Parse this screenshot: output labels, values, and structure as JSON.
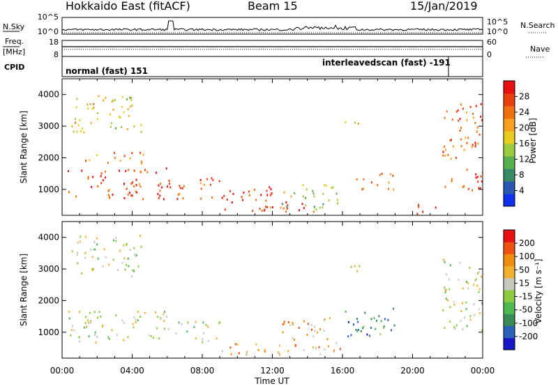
{
  "header": {
    "station": "Hokkaido East (fitACF)",
    "beam": "Beam 15",
    "date": "15/Jan/2019"
  },
  "strips": {
    "nsky_label": "N.Sky",
    "nsky_ticks": [
      "10^5",
      "10^0"
    ],
    "nsearch_label": "N.Search",
    "nsearch_ticks": [
      "10^5",
      "10^0"
    ],
    "freq_label_1": "Freq.",
    "freq_label_2": "[MHz]",
    "freq_ticks": [
      "18",
      "8"
    ],
    "nave_label": "Nave",
    "nave_ticks": [
      "60",
      "0"
    ],
    "cpid_label": "CPID",
    "cpid_segments": [
      {
        "label": "normal (fast) 151"
      },
      {
        "label": "interleavedscan (fast) -191"
      }
    ]
  },
  "chart_data": [
    {
      "type": "heatmap",
      "name": "Power",
      "ylabel": "Slant Range [km]",
      "xlabel": "Time UT",
      "x_ticks": [
        "00:00",
        "04:00",
        "08:00",
        "12:00",
        "16:00",
        "20:00",
        "00:00"
      ],
      "x_range_hours": [
        0,
        24
      ],
      "y_ticks": [
        1000,
        2000,
        3000,
        4000
      ],
      "y_range_km": [
        180,
        4500
      ],
      "colorbar": {
        "label": "Power [dB]",
        "ticks": [
          "4",
          "8",
          "12",
          "16",
          "20",
          "24",
          "28"
        ],
        "range": [
          0,
          30
        ],
        "colors": [
          "#1030f0",
          "#2a58b0",
          "#3a8a68",
          "#58b050",
          "#9ccc40",
          "#e8cc20",
          "#f8a020",
          "#f07010",
          "#e84010",
          "#e81010"
        ]
      },
      "regions": [
        {
          "t": [
            0.3,
            6.0
          ],
          "r": [
            700,
            1700
          ],
          "level": 0.86
        },
        {
          "t": [
            1.0,
            5.0
          ],
          "r": [
            1800,
            2200
          ],
          "level": 0.7
        },
        {
          "t": [
            0.4,
            4.5
          ],
          "r": [
            2800,
            4100
          ],
          "level": 0.55
        },
        {
          "t": [
            6.0,
            9.0
          ],
          "r": [
            700,
            1400
          ],
          "level": 0.8
        },
        {
          "t": [
            9.0,
            12.0
          ],
          "r": [
            350,
            1100
          ],
          "level": 0.88
        },
        {
          "t": [
            11.5,
            14.5
          ],
          "r": [
            300,
            700
          ],
          "level": 0.85
        },
        {
          "t": [
            12.5,
            16.0
          ],
          "r": [
            400,
            1200
          ],
          "level": 0.45
        },
        {
          "t": [
            16.5,
            19.0
          ],
          "r": [
            1000,
            1700
          ],
          "level": 0.75
        },
        {
          "t": [
            16.0,
            17.0
          ],
          "r": [
            2900,
            3200
          ],
          "level": 0.6
        },
        {
          "t": [
            20.0,
            21.3
          ],
          "r": [
            250,
            600
          ],
          "level": 0.9
        },
        {
          "t": [
            21.7,
            24.0
          ],
          "r": [
            1000,
            3800
          ],
          "level": 0.8
        }
      ]
    },
    {
      "type": "heatmap",
      "name": "Velocity",
      "ylabel": "Slant Range [km]",
      "xlabel": "Time UT",
      "x_ticks": [
        "00:00",
        "04:00",
        "08:00",
        "12:00",
        "16:00",
        "20:00",
        "00:00"
      ],
      "x_range_hours": [
        0,
        24
      ],
      "y_ticks": [
        1000,
        2000,
        3000,
        4000
      ],
      "y_range_km": [
        180,
        4500
      ],
      "colorbar": {
        "label": "Velocity [m s⁻¹]",
        "ticks": [
          "200",
          "100",
          "50",
          "15",
          "-15",
          "-50",
          "-100",
          "-200"
        ],
        "colors": [
          "#1818c8",
          "#2a60b8",
          "#3a8a58",
          "#50b850",
          "#8ccc40",
          "#c8c8c0",
          "#f0b030",
          "#f08c10",
          "#f05010",
          "#e81010"
        ]
      },
      "regions": [
        {
          "t": [
            0.3,
            6.0
          ],
          "r": [
            700,
            1700
          ],
          "level": 0.5
        },
        {
          "t": [
            0.4,
            4.5
          ],
          "r": [
            2800,
            4100
          ],
          "level": 0.5
        },
        {
          "t": [
            6.0,
            9.0
          ],
          "r": [
            700,
            1400
          ],
          "level": 0.5
        },
        {
          "t": [
            9.0,
            16.0
          ],
          "r": [
            300,
            700
          ],
          "level": 0.72
        },
        {
          "t": [
            12.5,
            15.5
          ],
          "r": [
            700,
            1500
          ],
          "level": 0.68
        },
        {
          "t": [
            16.0,
            19.0
          ],
          "r": [
            900,
            1800
          ],
          "level": 0.25
        },
        {
          "t": [
            16.0,
            17.0
          ],
          "r": [
            2900,
            3200
          ],
          "level": 0.5
        },
        {
          "t": [
            21.7,
            24.0
          ],
          "r": [
            1000,
            3500
          ],
          "level": 0.5
        }
      ]
    }
  ]
}
